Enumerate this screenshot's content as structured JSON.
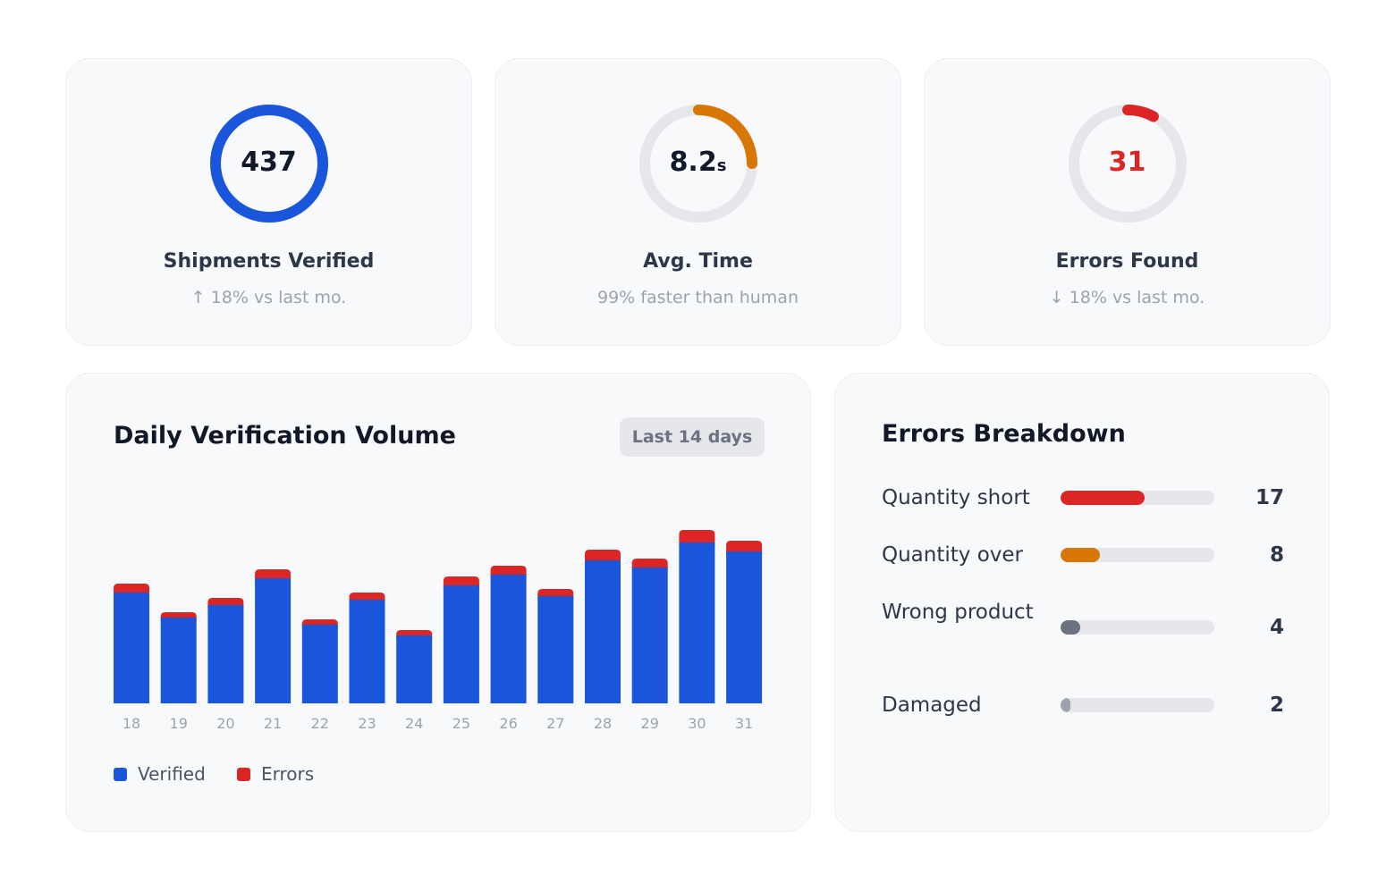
{
  "kpis": [
    {
      "value": "437",
      "unit": "",
      "title": "Shipments Verified",
      "sub": "↑ 18% vs last mo.",
      "progress": 1.0,
      "color": "#1a56db",
      "value_color": "#111827"
    },
    {
      "value": "8.2",
      "unit": "s",
      "title": "Avg. Time",
      "sub": "99% faster than human",
      "progress": 0.25,
      "color": "#d97706",
      "value_color": "#111827"
    },
    {
      "value": "31",
      "unit": "",
      "title": "Errors Found",
      "sub": "↓ 18% vs last mo.",
      "progress": 0.08,
      "color": "#dc2626",
      "value_color": "#dc2626"
    }
  ],
  "volume": {
    "title": "Daily Verification Volume",
    "range_label": "Last 14 days",
    "legend": [
      {
        "label": "Verified",
        "color": "#1a56db"
      },
      {
        "label": "Errors",
        "color": "#dc2626"
      }
    ]
  },
  "chart_data": {
    "type": "bar",
    "stacked": true,
    "categories": [
      "18",
      "19",
      "20",
      "21",
      "22",
      "23",
      "24",
      "25",
      "26",
      "27",
      "28",
      "29",
      "30",
      "31"
    ],
    "series": [
      {
        "name": "Verified",
        "color": "#1a56db",
        "values": [
          124,
          96,
          110,
          140,
          88,
          116,
          76,
          132,
          144,
          120,
          160,
          152,
          180,
          170
        ]
      },
      {
        "name": "Errors",
        "color": "#dc2626",
        "values": [
          10,
          6,
          8,
          10,
          6,
          8,
          6,
          10,
          10,
          8,
          12,
          10,
          14,
          12
        ]
      }
    ],
    "ylim": [
      0,
      200
    ],
    "grid": false,
    "legend_position": "bottom-left"
  },
  "breakdown": {
    "title": "Errors Breakdown",
    "items": [
      {
        "label": "Quantity short",
        "count": "17",
        "fraction": 0.548,
        "color": "#dc2626"
      },
      {
        "label": "Quantity over",
        "count": "8",
        "fraction": 0.258,
        "color": "#d97706"
      },
      {
        "label": "Wrong product",
        "count": "4",
        "fraction": 0.129,
        "color": "#6b7280"
      },
      {
        "label": "Damaged",
        "count": "2",
        "fraction": 0.065,
        "color": "#9ca3af"
      }
    ]
  }
}
